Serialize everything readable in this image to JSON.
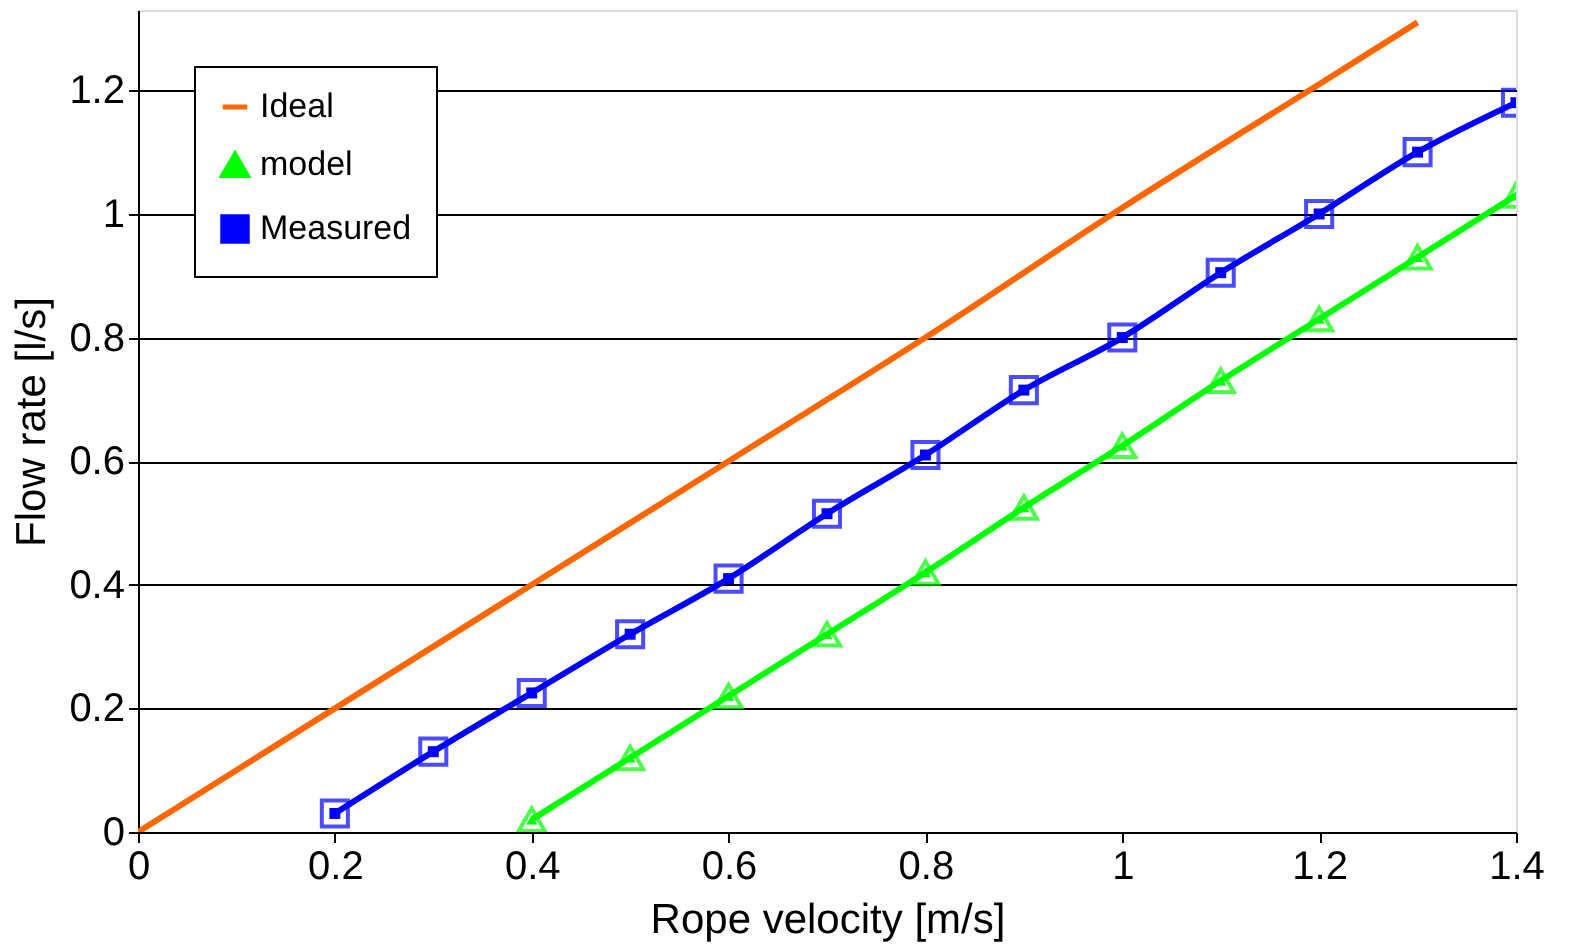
{
  "chart_data": {
    "type": "line",
    "xlabel": "Rope velocity [m/s]",
    "ylabel": "Flow rate [l/s]",
    "xlim": [
      0,
      1.4
    ],
    "ylim": [
      0,
      1.33
    ],
    "xticks": [
      0,
      0.2,
      0.4,
      0.6,
      0.8,
      1,
      1.2,
      1.4
    ],
    "yticks": [
      0,
      0.2,
      0.4,
      0.6,
      0.8,
      1,
      1.2
    ],
    "grid": "y",
    "legend": "top left",
    "series": [
      {
        "name": "Ideal",
        "color": "#ff6600",
        "marker": "none",
        "x": [
          0,
          0.2,
          0.4,
          0.6,
          0.8,
          1.0,
          1.2,
          1.3
        ],
        "values": [
          0,
          0.2,
          0.4,
          0.6,
          0.8,
          1.01,
          1.21,
          1.31
        ]
      },
      {
        "name": "model",
        "color": "#00ff00",
        "marker": "triangle",
        "x": [
          0.4,
          0.5,
          0.6,
          0.7,
          0.8,
          0.9,
          1.0,
          1.1,
          1.2,
          1.3,
          1.4
        ],
        "values": [
          0.02,
          0.12,
          0.22,
          0.32,
          0.42,
          0.525,
          0.625,
          0.73,
          0.83,
          0.93,
          1.03
        ]
      },
      {
        "name": "Measured",
        "color": "#0000ff",
        "marker": "square",
        "x": [
          0.2,
          0.3,
          0.4,
          0.5,
          0.6,
          0.7,
          0.8,
          0.9,
          1.0,
          1.1,
          1.2,
          1.3,
          1.4
        ],
        "values": [
          0.03,
          0.13,
          0.225,
          0.32,
          0.41,
          0.515,
          0.61,
          0.715,
          0.8,
          0.905,
          1.0,
          1.1,
          1.18
        ]
      }
    ]
  }
}
